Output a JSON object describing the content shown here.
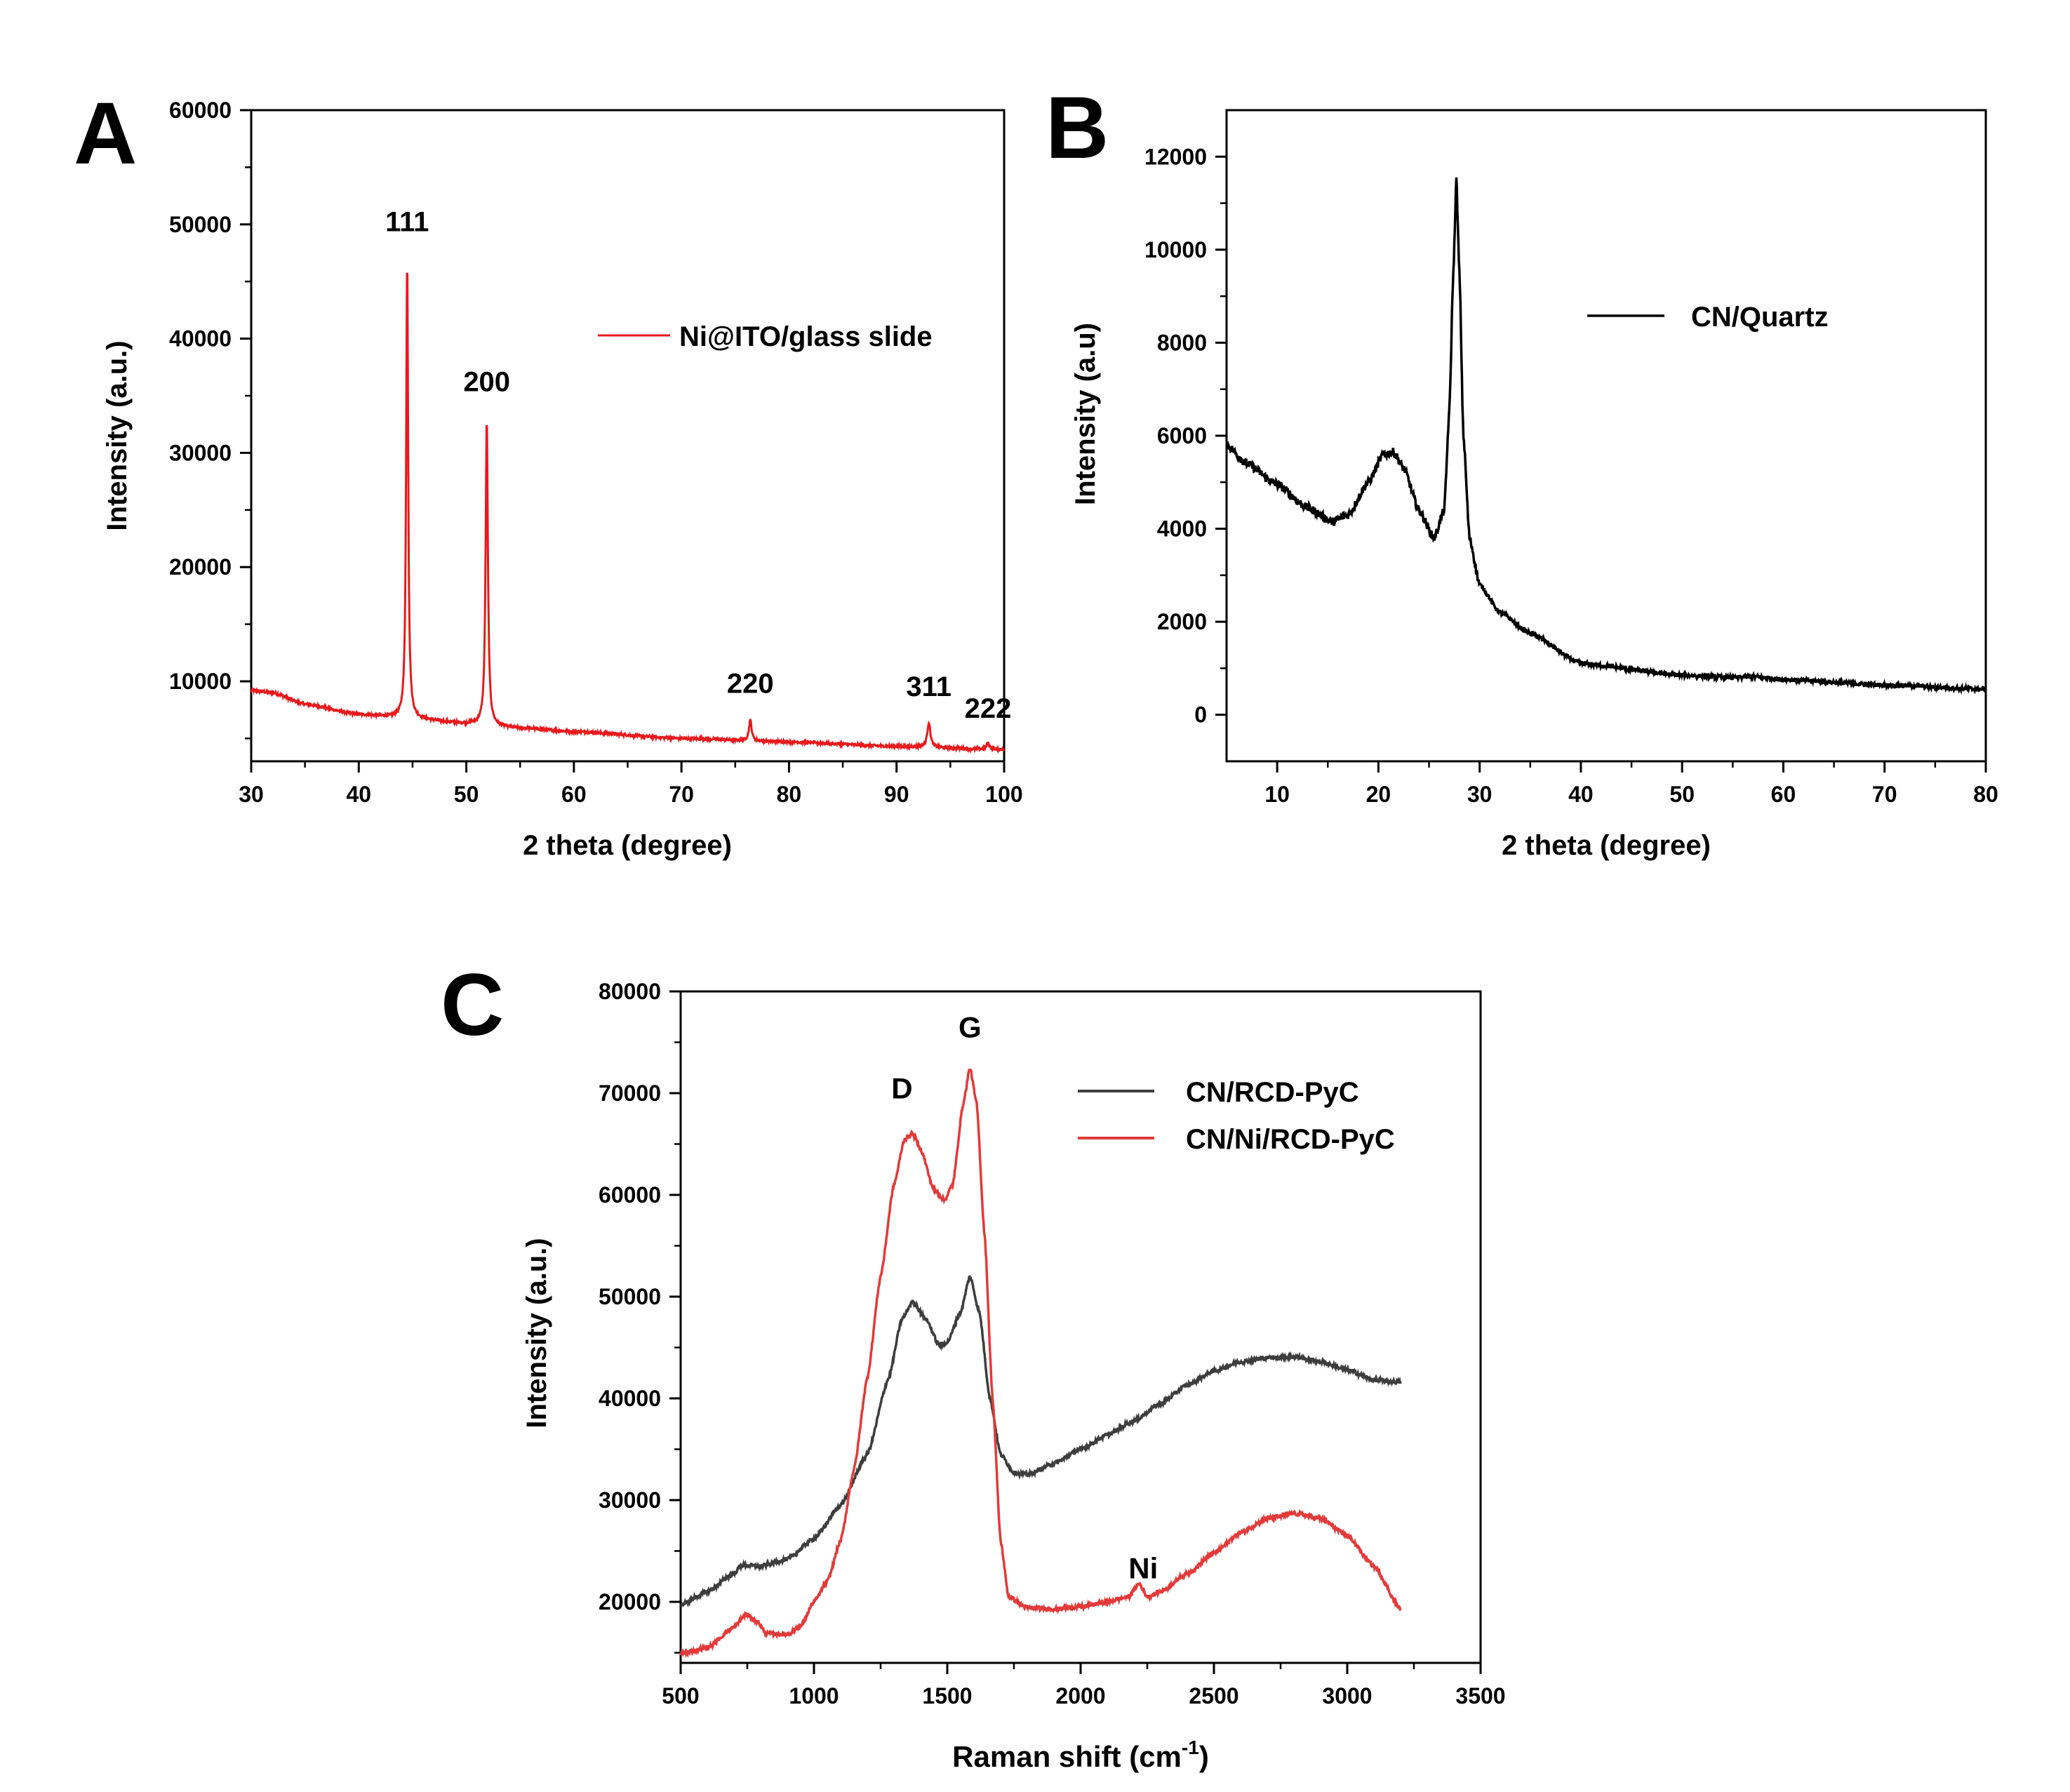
{
  "colors": {
    "red": "#e8191c",
    "black": "#000000",
    "dark": "#3d3d3d",
    "redC": "#e23a3a"
  },
  "chart_data": [
    {
      "panel": "A",
      "type": "line",
      "xlabel": "2 theta (degree)",
      "ylabel": "Intensity (a.u.)",
      "xlim": [
        30,
        100
      ],
      "ylim": [
        3000,
        60000
      ],
      "xticks": [
        "30",
        "40",
        "50",
        "60",
        "70",
        "80",
        "90",
        "100"
      ],
      "yticks": [
        "10000",
        "20000",
        "30000",
        "40000",
        "50000",
        "60000"
      ],
      "legend": "top-right",
      "series": [
        {
          "name": "Ni@ITO/glass slide",
          "color": "#e8191c",
          "baseline": [
            [
              30,
              9200
            ],
            [
              32,
              9000
            ],
            [
              35,
              8000
            ],
            [
              40,
              7100
            ],
            [
              44,
              6800
            ],
            [
              50,
              6300
            ],
            [
              55,
              5900
            ],
            [
              60,
              5600
            ],
            [
              70,
              5000
            ],
            [
              80,
              4700
            ],
            [
              90,
              4300
            ],
            [
              100,
              4000
            ]
          ],
          "peaks": [
            {
              "label": "111",
              "x": 44.5,
              "y": 47000,
              "width": 0.22
            },
            {
              "label": "200",
              "x": 51.9,
              "y": 33000,
              "width": 0.25
            },
            {
              "label": "220",
              "x": 76.4,
              "y": 6600,
              "width": 0.3
            },
            {
              "label": "311",
              "x": 93.0,
              "y": 6400,
              "width": 0.35
            },
            {
              "label": "222",
              "x": 98.5,
              "y": 4600,
              "width": 0.35
            }
          ]
        }
      ]
    },
    {
      "panel": "B",
      "type": "line",
      "xlabel": "2 theta (degree)",
      "ylabel": "Intensity (a.u)",
      "xlim": [
        5,
        80
      ],
      "ylim": [
        -1000,
        13000
      ],
      "xticks": [
        "10",
        "20",
        "30",
        "40",
        "50",
        "60",
        "70",
        "80"
      ],
      "yticks": [
        "0",
        "2000",
        "4000",
        "6000",
        "8000",
        "10000",
        "12000"
      ],
      "legend": "top-right",
      "series": [
        {
          "name": "CN/Quartz",
          "color": "#000000",
          "points": [
            [
              5,
              5800
            ],
            [
              7,
              5400
            ],
            [
              10,
              4950
            ],
            [
              13,
              4450
            ],
            [
              15.5,
              4150
            ],
            [
              17,
              4300
            ],
            [
              19,
              5000
            ],
            [
              20.5,
              5600
            ],
            [
              21.5,
              5650
            ],
            [
              22.5,
              5300
            ],
            [
              24,
              4400
            ],
            [
              25.5,
              3800
            ],
            [
              26.5,
              4400
            ],
            [
              27,
              6500
            ],
            [
              27.4,
              9500
            ],
            [
              27.7,
              11500
            ],
            [
              28,
              9500
            ],
            [
              28.4,
              6000
            ],
            [
              29,
              3800
            ],
            [
              30,
              2800
            ],
            [
              32,
              2200
            ],
            [
              35,
              1750
            ],
            [
              40,
              1100
            ],
            [
              50,
              850
            ],
            [
              55,
              800
            ],
            [
              57,
              820
            ],
            [
              60,
              760
            ],
            [
              70,
              640
            ],
            [
              80,
              550
            ]
          ]
        }
      ]
    },
    {
      "panel": "C",
      "type": "line",
      "xlabel": "Raman shift (cm",
      "xlabel_sup": "-1",
      "xlabel_end": ")",
      "ylabel": "Intensity (a.u.)",
      "xlim": [
        500,
        3500
      ],
      "ylim": [
        14000,
        80000
      ],
      "xticks": [
        "500",
        "1000",
        "1500",
        "2000",
        "2500",
        "3000",
        "3500"
      ],
      "yticks": [
        "20000",
        "30000",
        "40000",
        "50000",
        "60000",
        "70000",
        "80000"
      ],
      "legend": "top-right",
      "annotations": [
        {
          "label": "D",
          "x": 1330,
          "y": 69500
        },
        {
          "label": "G",
          "x": 1585,
          "y": 75500
        },
        {
          "label": "Ni",
          "x": 2235,
          "y": 22300
        }
      ],
      "series": [
        {
          "name": "CN/RCD-PyC",
          "color": "#3d3d3d",
          "points": [
            [
              500,
              19700
            ],
            [
              600,
              21000
            ],
            [
              700,
              22800
            ],
            [
              730,
              23600
            ],
            [
              800,
              23500
            ],
            [
              900,
              24200
            ],
            [
              1000,
              26200
            ],
            [
              1100,
              29500
            ],
            [
              1200,
              34500
            ],
            [
              1280,
              42000
            ],
            [
              1330,
              47800
            ],
            [
              1370,
              49500
            ],
            [
              1420,
              47800
            ],
            [
              1470,
              45200
            ],
            [
              1500,
              45500
            ],
            [
              1550,
              48500
            ],
            [
              1585,
              52000
            ],
            [
              1620,
              48500
            ],
            [
              1660,
              40000
            ],
            [
              1700,
              34500
            ],
            [
              1750,
              32700
            ],
            [
              1800,
              32500
            ],
            [
              1900,
              33600
            ],
            [
              2000,
              35000
            ],
            [
              2100,
              36400
            ],
            [
              2200,
              37800
            ],
            [
              2300,
              39500
            ],
            [
              2400,
              41300
            ],
            [
              2500,
              42700
            ],
            [
              2600,
              43600
            ],
            [
              2700,
              44000
            ],
            [
              2800,
              44100
            ],
            [
              2900,
              43600
            ],
            [
              3000,
              42800
            ],
            [
              3100,
              41800
            ],
            [
              3200,
              41600
            ]
          ]
        },
        {
          "name": "CN/Ni/RCD-PyC",
          "color": "#e23a3a",
          "points": [
            [
              500,
              14900
            ],
            [
              600,
              15500
            ],
            [
              700,
              17500
            ],
            [
              745,
              18800
            ],
            [
              790,
              18000
            ],
            [
              820,
              16900
            ],
            [
              900,
              16800
            ],
            [
              950,
              17600
            ],
            [
              1000,
              20000
            ],
            [
              1050,
              22000
            ],
            [
              1100,
              26000
            ],
            [
              1150,
              33000
            ],
            [
              1200,
              42000
            ],
            [
              1250,
              52000
            ],
            [
              1300,
              61000
            ],
            [
              1340,
              65500
            ],
            [
              1370,
              66000
            ],
            [
              1400,
              64500
            ],
            [
              1450,
              60500
            ],
            [
              1490,
              59500
            ],
            [
              1520,
              61000
            ],
            [
              1560,
              69000
            ],
            [
              1585,
              72500
            ],
            [
              1610,
              69000
            ],
            [
              1640,
              56000
            ],
            [
              1670,
              40000
            ],
            [
              1700,
              26000
            ],
            [
              1730,
              20500
            ],
            [
              1800,
              19400
            ],
            [
              1900,
              19300
            ],
            [
              2000,
              19500
            ],
            [
              2100,
              20000
            ],
            [
              2180,
              20500
            ],
            [
              2220,
              21800
            ],
            [
              2250,
              20500
            ],
            [
              2300,
              21000
            ],
            [
              2400,
              22800
            ],
            [
              2500,
              24800
            ],
            [
              2600,
              26800
            ],
            [
              2700,
              28200
            ],
            [
              2800,
              28700
            ],
            [
              2900,
              28200
            ],
            [
              3000,
              26500
            ],
            [
              3100,
              23500
            ],
            [
              3200,
              19300
            ]
          ]
        }
      ]
    }
  ],
  "panels": [
    {
      "letter": "A"
    },
    {
      "letter": "B"
    },
    {
      "letter": "C"
    }
  ]
}
